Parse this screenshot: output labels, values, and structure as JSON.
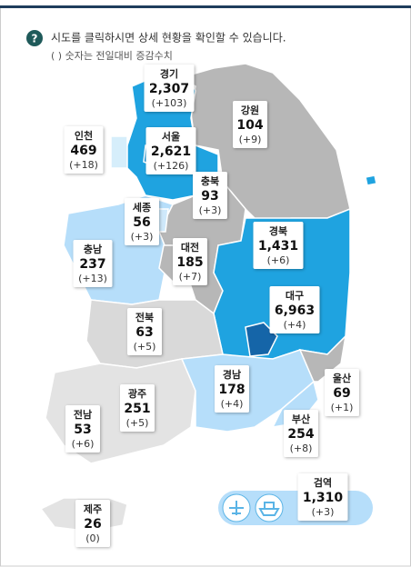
{
  "header": {
    "note": "시도를 클릭하시면 상세 현황을 확인할 수 있습니다.",
    "subnote": "( ) 숫자는 전일대비 증감수치"
  },
  "regions": [
    {
      "name": "경기",
      "count": "2,307",
      "change": "(+103)"
    },
    {
      "name": "강원",
      "count": "104",
      "change": "(+9)"
    },
    {
      "name": "인천",
      "count": "469",
      "change": "(+18)"
    },
    {
      "name": "서울",
      "count": "2,621",
      "change": "(+126)"
    },
    {
      "name": "충북",
      "count": "93",
      "change": "(+3)"
    },
    {
      "name": "세종",
      "count": "56",
      "change": "(+3)"
    },
    {
      "name": "충남",
      "count": "237",
      "change": "(+13)"
    },
    {
      "name": "대전",
      "count": "185",
      "change": "(+7)"
    },
    {
      "name": "경북",
      "count": "1,431",
      "change": "(+6)"
    },
    {
      "name": "대구",
      "count": "6,963",
      "change": "(+4)"
    },
    {
      "name": "전북",
      "count": "63",
      "change": "(+5)"
    },
    {
      "name": "경남",
      "count": "178",
      "change": "(+4)"
    },
    {
      "name": "울산",
      "count": "69",
      "change": "(+1)"
    },
    {
      "name": "광주",
      "count": "251",
      "change": "(+5)"
    },
    {
      "name": "전남",
      "count": "53",
      "change": "(+6)"
    },
    {
      "name": "부산",
      "count": "254",
      "change": "(+8)"
    },
    {
      "name": "검역",
      "count": "1,310",
      "change": "(+3)"
    },
    {
      "name": "제주",
      "count": "26",
      "change": "(0)"
    }
  ]
}
